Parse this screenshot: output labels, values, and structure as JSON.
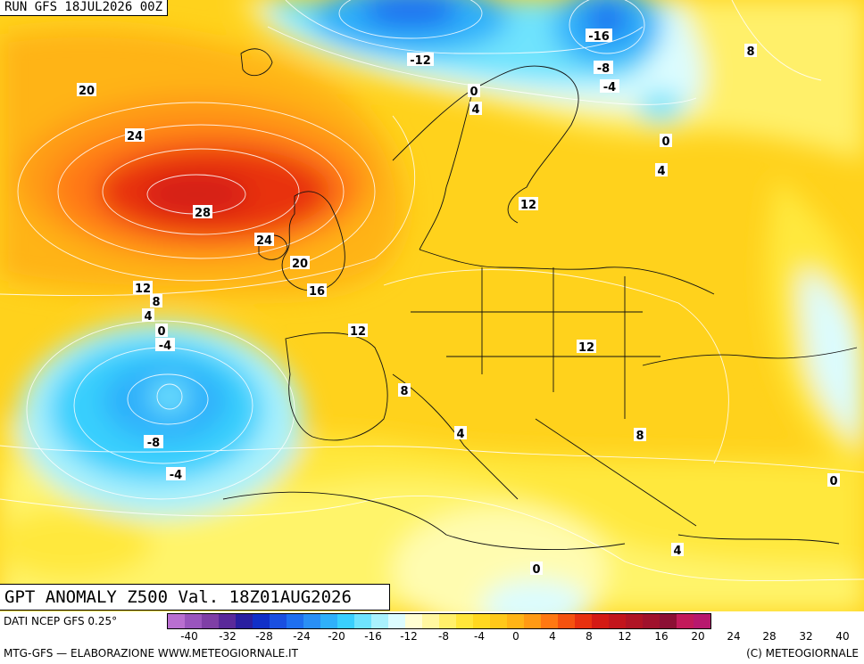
{
  "run_label": "RUN GFS 18JUL2026 00Z",
  "title": "GPT ANOMALY Z500 Val. 18Z01AUG2026",
  "data_source": "DATI NCEP GFS 0.25°",
  "credit_left": "MTG-GFS — ELABORAZIONE WWW.METEOGIORNALE.IT",
  "credit_right": "(C) METEOGIORNALE",
  "colorbar": {
    "colors": [
      "#b96fd0",
      "#9a55bd",
      "#7f3fa6",
      "#5a2a9a",
      "#2a1fa0",
      "#1130c8",
      "#1a4fe0",
      "#1f6fef",
      "#2a8ff5",
      "#2fb0fa",
      "#39cffd",
      "#6fe3fd",
      "#a9f1fd",
      "#dcfcfe",
      "#fffed2",
      "#fff7a0",
      "#fff06a",
      "#ffe63a",
      "#ffd820",
      "#ffc81a",
      "#ffb416",
      "#ff9a14",
      "#ff7812",
      "#f5520f",
      "#e8300f",
      "#d41a14",
      "#c2151c",
      "#b01424",
      "#a0122c",
      "#8c1034",
      "#c21a5a",
      "#b8186e"
    ],
    "tick_labels": [
      "-40",
      "-32",
      "-28",
      "-24",
      "-20",
      "-16",
      "-12",
      "-8",
      "-4",
      "0",
      "4",
      "8",
      "12",
      "16",
      "20",
      "24",
      "28",
      "32",
      "40"
    ],
    "tick_values": [
      -40,
      -32,
      -28,
      -24,
      -20,
      -16,
      -12,
      -8,
      -4,
      0,
      4,
      8,
      12,
      16,
      20,
      24,
      28,
      32,
      40
    ]
  },
  "contour_labels": [
    {
      "text": "-12"
    },
    {
      "text": "-16"
    },
    {
      "text": "-8"
    },
    {
      "text": "-4"
    },
    {
      "text": "8"
    },
    {
      "text": "0"
    },
    {
      "text": "4"
    },
    {
      "text": "0"
    },
    {
      "text": "4"
    },
    {
      "text": "20"
    },
    {
      "text": "24"
    },
    {
      "text": "28"
    },
    {
      "text": "24"
    },
    {
      "text": "20"
    },
    {
      "text": "16"
    },
    {
      "text": "12"
    },
    {
      "text": "8"
    },
    {
      "text": "4"
    },
    {
      "text": "0"
    },
    {
      "text": "-4"
    },
    {
      "text": "12"
    },
    {
      "text": "12"
    },
    {
      "text": "12"
    },
    {
      "text": "8"
    },
    {
      "text": "-8"
    },
    {
      "text": "-4"
    },
    {
      "text": "4"
    },
    {
      "text": "8"
    },
    {
      "text": "0"
    },
    {
      "text": "4"
    },
    {
      "text": "0"
    }
  ]
}
